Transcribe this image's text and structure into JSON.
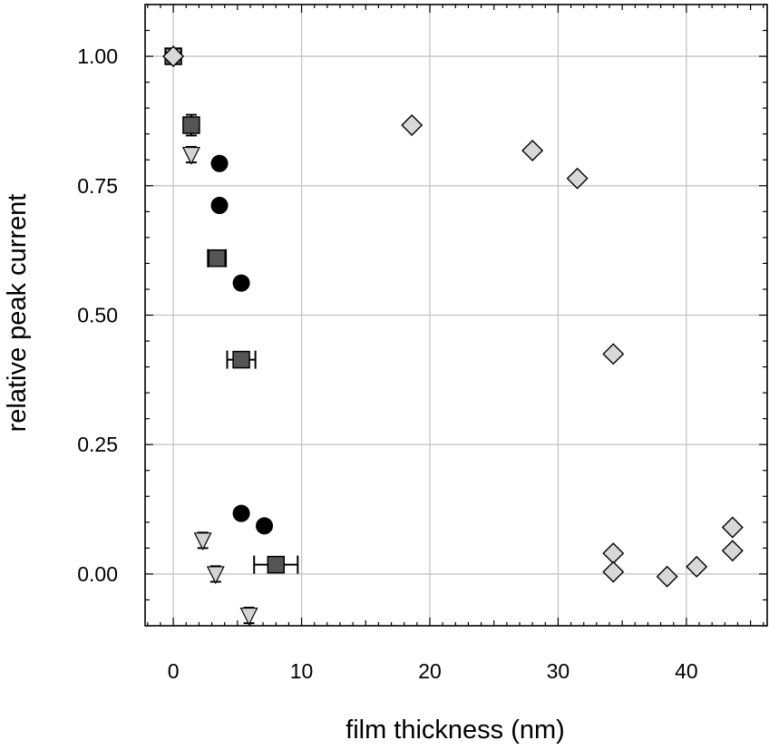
{
  "chart_data": {
    "type": "scatter",
    "title": "",
    "xlabel": "film thickness (nm)",
    "ylabel": "relative peak current",
    "xlim": [
      -2.2,
      46.3
    ],
    "ylim": [
      -0.1,
      1.1
    ],
    "xticks": [
      0,
      10,
      20,
      30,
      40
    ],
    "xtick_labels": [
      "0",
      "10",
      "20",
      "30",
      "40"
    ],
    "yticks": [
      0,
      0.25,
      0.5,
      0.75,
      1
    ],
    "ytick_labels": [
      "0.00",
      "0.25",
      "0.50",
      "0.75",
      "1.00"
    ],
    "grid": true,
    "legend": "none",
    "series": [
      {
        "marker": "circle",
        "color": "#000000",
        "points": [
          {
            "x": 0,
            "y": 1.0
          },
          {
            "x": 3.6,
            "y": 0.793
          },
          {
            "x": 3.6,
            "y": 0.712
          },
          {
            "x": 5.3,
            "y": 0.562
          },
          {
            "x": 5.3,
            "y": 0.117
          },
          {
            "x": 7.1,
            "y": 0.093
          }
        ]
      },
      {
        "marker": "square",
        "color": "#555555",
        "points": [
          {
            "x": 0,
            "y": 1.0
          },
          {
            "x": 1.4,
            "y": 0.867,
            "yerr": 0.02
          },
          {
            "x": 3.4,
            "y": 0.61,
            "xerr": 0.7
          },
          {
            "x": 5.3,
            "y": 0.414,
            "xerr": 1.1
          },
          {
            "x": 8.0,
            "y": 0.018,
            "xerr": 1.7
          }
        ]
      },
      {
        "marker": "triangle-down",
        "color": "#d3d3d3",
        "points": [
          {
            "x": 0,
            "y": 1.0
          },
          {
            "x": 1.4,
            "y": 0.81,
            "yerr": 0.015
          },
          {
            "x": 2.3,
            "y": 0.065,
            "yerr": 0.015
          },
          {
            "x": 3.3,
            "y": 0.0,
            "yerr": 0.015
          },
          {
            "x": 5.9,
            "y": -0.08,
            "yerr": 0.015
          }
        ]
      },
      {
        "marker": "diamond",
        "color": "#d8d8d8",
        "points": [
          {
            "x": 0,
            "y": 1.0
          },
          {
            "x": 18.6,
            "y": 0.867
          },
          {
            "x": 28.0,
            "y": 0.818
          },
          {
            "x": 31.5,
            "y": 0.764
          },
          {
            "x": 34.3,
            "y": 0.425
          },
          {
            "x": 34.3,
            "y": 0.04
          },
          {
            "x": 34.3,
            "y": 0.004
          },
          {
            "x": 38.5,
            "y": -0.005
          },
          {
            "x": 40.8,
            "y": 0.014
          },
          {
            "x": 43.6,
            "y": 0.09
          },
          {
            "x": 43.6,
            "y": 0.045
          }
        ]
      }
    ]
  }
}
